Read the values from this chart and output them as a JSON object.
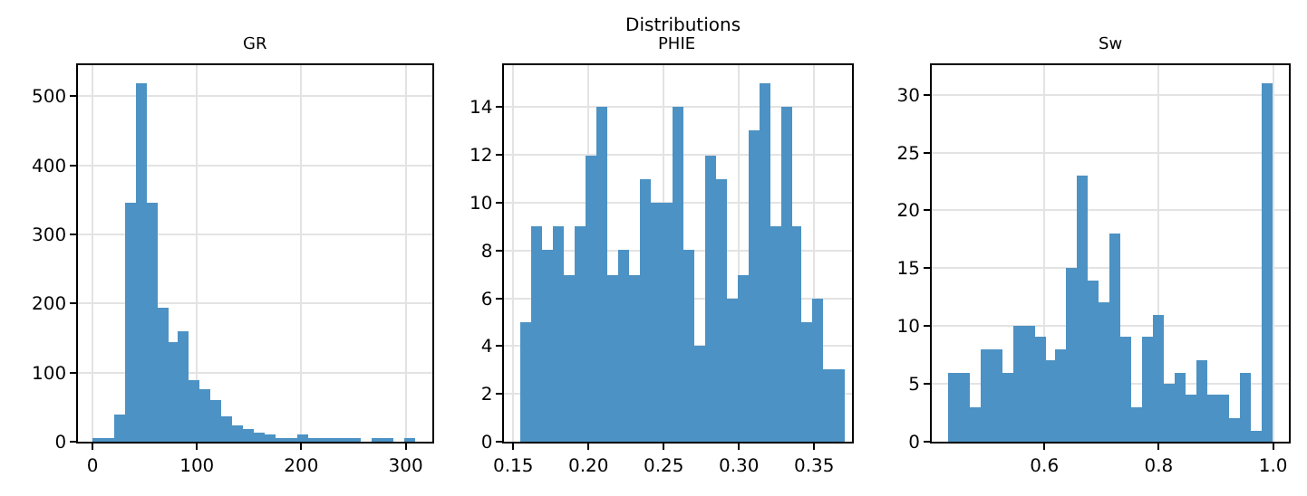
{
  "chart_data": [
    {
      "type": "histogram",
      "title": "GR",
      "color": "#4c92c4",
      "grid": true,
      "bins": [
        0,
        10.3,
        20.6,
        30.9,
        41.2,
        51.5,
        61.8,
        72.1,
        82.4,
        92.7,
        103,
        113.3,
        123.6,
        133.9,
        144.2,
        154.5,
        164.8,
        175.1,
        185.4,
        195.7,
        206,
        216.3,
        226.6,
        236.9,
        247.2,
        257.5,
        267.8,
        278.1,
        288.4,
        298.7,
        309
      ],
      "values": [
        5,
        3,
        40,
        347,
        519,
        347,
        193,
        143,
        161,
        90,
        77,
        61,
        37,
        24,
        19,
        14,
        11,
        6,
        3,
        11,
        6,
        3,
        3,
        6,
        3,
        0,
        3,
        3,
        0,
        3
      ],
      "xlim": [
        -14,
        326
      ],
      "xticks": [
        0,
        100,
        200,
        300
      ],
      "ylim": [
        0,
        545
      ],
      "yticks": [
        0,
        100,
        200,
        300,
        400,
        500
      ]
    },
    {
      "type": "histogram",
      "title": "PHIE",
      "color": "#4c92c4",
      "grid": true,
      "annotations": [
        "Distributions"
      ],
      "bins": [
        0.155,
        0.1622,
        0.1694,
        0.1766,
        0.1838,
        0.191,
        0.1982,
        0.2054,
        0.2126,
        0.2198,
        0.227,
        0.2342,
        0.2414,
        0.2486,
        0.2558,
        0.263,
        0.2702,
        0.2774,
        0.2846,
        0.2918,
        0.299,
        0.3062,
        0.3134,
        0.3206,
        0.3278,
        0.335,
        0.3422,
        0.3494,
        0.3566,
        0.3638,
        0.371
      ],
      "values": [
        5,
        9,
        8,
        9,
        7,
        9,
        12,
        14,
        7,
        8,
        7,
        11,
        10,
        10,
        14,
        8,
        4,
        12,
        11,
        6,
        7,
        13,
        15,
        9,
        14,
        9,
        5,
        6,
        3,
        3
      ],
      "xlim": [
        0.144,
        0.375
      ],
      "xticks": [
        {
          "value": 0.15,
          "label": "0.15"
        },
        {
          "value": 0.2,
          "label": "0.20"
        },
        {
          "value": 0.25,
          "label": "0.25"
        },
        {
          "value": 0.3,
          "label": "0.30"
        },
        {
          "value": 0.35,
          "label": "0.35"
        }
      ],
      "ylim": [
        0,
        15.75
      ],
      "yticks": [
        0,
        2,
        4,
        6,
        8,
        10,
        12,
        14
      ]
    },
    {
      "type": "histogram",
      "title": "Sw",
      "color": "#4c92c4",
      "grid": true,
      "bins": [
        0.431,
        0.4499,
        0.4688,
        0.4877,
        0.5066,
        0.5255,
        0.5444,
        0.5633,
        0.5822,
        0.6011,
        0.62,
        0.6389,
        0.6578,
        0.6767,
        0.6956,
        0.7145,
        0.7334,
        0.7523,
        0.7712,
        0.7901,
        0.809,
        0.8279,
        0.8468,
        0.8657,
        0.8846,
        0.9035,
        0.9224,
        0.9413,
        0.9602,
        0.9791,
        0.998
      ],
      "values": [
        6,
        6,
        3,
        8,
        8,
        6,
        10,
        10,
        9,
        7,
        8,
        15,
        23,
        14,
        12,
        18,
        9,
        3,
        9,
        11,
        5,
        6,
        4,
        7,
        4,
        4,
        2,
        6,
        1,
        31
      ],
      "xlim": [
        0.403,
        1.0275
      ],
      "xticks": [
        0.6,
        0.8,
        {
          "value": 1.0,
          "label": "1.0"
        }
      ],
      "ylim": [
        0,
        32.55
      ],
      "yticks": [
        0,
        5,
        10,
        15,
        20,
        25,
        30
      ]
    }
  ]
}
